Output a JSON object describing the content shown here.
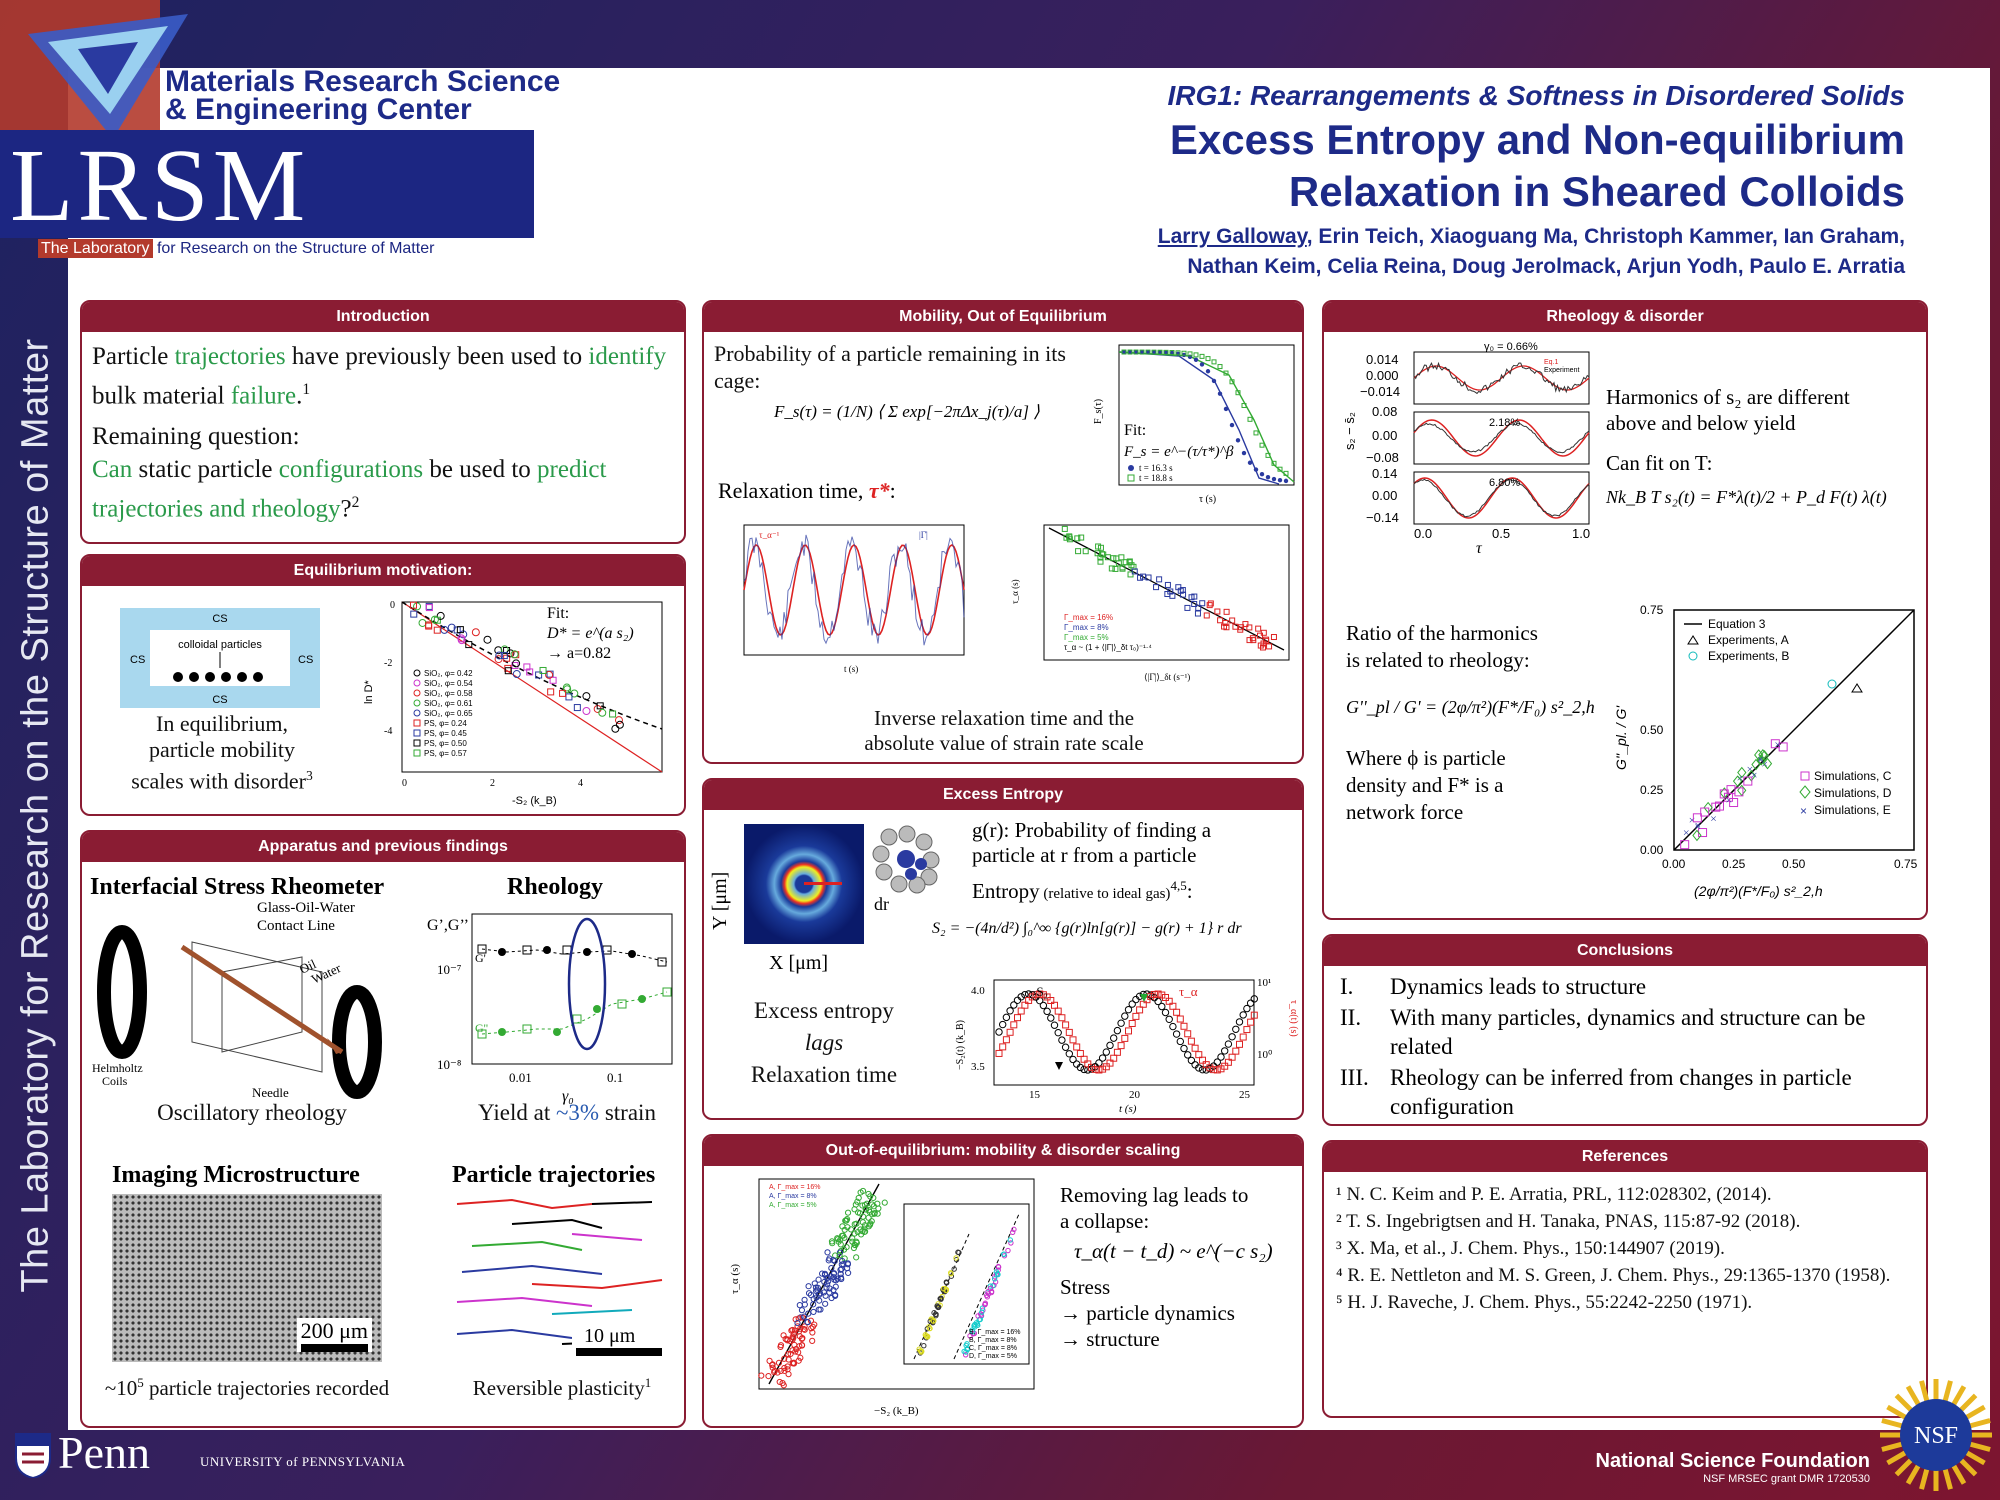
{
  "sidebar": {
    "text": "The Laboratory for Research on the Structure of Matter"
  },
  "logo": {
    "mrsec_line1": "Materials Research Science",
    "mrsec_line2": "& Engineering Center",
    "lrsm": "LRSM",
    "sub_highlight": "The Laboratory",
    "sub_rest": " for Research on the Structure of Matter"
  },
  "header": {
    "irg": "IRG1: Rearrangements & Softness in Disordered Solids",
    "title_line1": "Excess Entropy and Non-equilibrium",
    "title_line2": "Relaxation in Sheared Colloids",
    "lead_author": "Larry Galloway",
    "authors_line1_rest": ", Erin Teich, Xiaoguang Ma, Christoph Kammer, Ian Graham,",
    "authors_line2": "Nathan Keim, Celia Reina, Doug Jerolmack, Arjun Yodh, Paulo E. Arratia"
  },
  "intro": {
    "heading": "Introduction",
    "p1_a": "Particle ",
    "p1_b": "trajectories",
    "p1_c": " have previously been used to ",
    "p1_d": "identify",
    "p1_e": " bulk material ",
    "p1_f": "failure",
    "p1_g": ".",
    "p1_sup": "1",
    "p2": "Remaining question:",
    "p3_a": "Can",
    "p3_b": " static particle ",
    "p3_c": "configurations",
    "p3_d": " be used to ",
    "p3_e": "predict trajectories and rheology",
    "p3_f": "?",
    "p3_sup": "2"
  },
  "equil": {
    "heading": "Equilibrium motivation:",
    "cs": "CS",
    "colloidal": "colloidal particles",
    "caption1": "In equilibrium,",
    "caption2": "particle mobility",
    "caption3": "scales with disorder",
    "caption_sup": "3",
    "fit": "Fit:",
    "fit_eq": "D* = e^(a s₂)",
    "fit_a": "→ a=0.82",
    "ylabel": "ln D*",
    "xlabel": "-S₂ (k_B)",
    "legend": [
      "SiO₂, φ= 0.42",
      "SiO₂, φ= 0.54",
      "SiO₂, φ= 0.58",
      "SiO₂, φ= 0.61",
      "SiO₂, φ= 0.65",
      "PS, φ= 0.24",
      "PS, φ= 0.45",
      "PS, φ= 0.50",
      "PS, φ= 0.57"
    ],
    "xticks": [
      "0",
      "2",
      "4"
    ],
    "yticks": [
      "0",
      "-2",
      "-4"
    ]
  },
  "apparatus": {
    "heading": "Apparatus and previous findings",
    "isr_title": "Interfacial Stress Rheometer",
    "label_gow": "Glass-Oil-Water",
    "label_contact": "Contact Line",
    "label_oil": "Oil",
    "label_water": "Water",
    "label_helm1": "Helmholtz",
    "label_helm2": "Coils",
    "label_needle": "Needle",
    "osc_caption": "Oscillatory rheology",
    "rheo_title": "Rheology",
    "rheo_ylabel": "G’,G’’",
    "rheo_g1": "G'",
    "rheo_g2": "G''",
    "rheo_yticks": [
      "10⁻⁷",
      "10⁻⁸"
    ],
    "rheo_xticks": [
      "0.01",
      "0.1"
    ],
    "rheo_xlabel": "γ₀",
    "yield_a": "Yield at ",
    "yield_b": "~3%",
    "yield_c": " strain",
    "imaging_title": "Imaging Microstructure",
    "scale200": "200 μm",
    "imaging_caption_a": "~10",
    "imaging_caption_sup": "5",
    "imaging_caption_b": " particle trajectories recorded",
    "traj_title": "Particle trajectories",
    "scale10": "10 μm",
    "traj_caption": "Reversible plasticity",
    "traj_sup": "1"
  },
  "mobility": {
    "heading": "Mobility, Out of Equilibrium",
    "p1": "Probability of a particle remaining in its cage:",
    "eq": "F_s(τ) = (1/N) ⟨ Σ exp[−2πΔx_j(τ)/a] ⟩",
    "fit": "Fit:",
    "fit_eq": "F_s = e^−(τ/τ*)^β",
    "legend": [
      "t = 16.3 s",
      "t = 18.8 s"
    ],
    "fs_xlabel": "τ (s)",
    "fs_ylabel": "F_s(τ)",
    "relax": "Relaxation time, ",
    "relax_sym": "τ*",
    "ts_legend1": "τ_α⁻¹",
    "ts_legend2": "|Γ̇|",
    "ts_xlabel": "t (s)",
    "sc_legend": [
      "Γ_max = 16%",
      "Γ_max = 8%",
      "Γ_max = 5%",
      "τ_α ~ (1 + ⟨|Γ̇|⟩_δt τ₀)⁻¹·⁴"
    ],
    "sc_xlabel": "⟨|Γ̇|⟩_δt (s⁻¹)",
    "sc_ylabel": "τ_α (s)",
    "caption1": "Inverse relaxation time and the",
    "caption2": "absolute value of strain rate scale"
  },
  "entropy": {
    "heading": "Excess Entropy",
    "gr_a": "g(r): Probability of finding a",
    "gr_b": "particle at r from a particle",
    "dr": "dr",
    "ylabel": "Y [μm]",
    "xlabel": "X [μm]",
    "entropy_label": "Entropy",
    "entropy_rel": " (relative to ideal gas)",
    "entropy_sup": "4,5",
    "eq": "S₂ = −(4n/d²) ∫₀^∞ {g(r)ln[g(r)] − g(r) + 1} r dr",
    "cap1": "Excess entropy",
    "cap2": "lags",
    "cap3": "Relaxation time",
    "ts_legend1": "−S₂",
    "ts_legend2": "τ_α",
    "ts_xticks": [
      "15",
      "20",
      "25"
    ],
    "ts_yleft": [
      "4.0",
      "3.5"
    ],
    "ts_yright": [
      "10¹",
      "10⁰"
    ],
    "ts_xlabel": "t (s)",
    "ts_ylabel_l": "−S₂(t) (k_B)",
    "ts_ylabel_r": "τ_α(t) (s)"
  },
  "ooe": {
    "heading": "Out-of-equilibrium: mobility & disorder scaling",
    "legendA": [
      "A, Γ_max = 16%",
      "A, Γ_max = 8%",
      "A, Γ_max = 5%"
    ],
    "legendB": [
      "B, Γ_max = 16%",
      "B, Γ_max = 8%",
      "C, Γ_max = 8%",
      "D, Γ_max = 5%"
    ],
    "xlabel": "−S₂ (k_B)",
    "ylabel": "τ_α (s)",
    "t1": "Removing lag leads to",
    "t2": "a collapse:",
    "eq": "τ_α(t − t_d) ~ e^(−c s₂)",
    "t3": "Stress",
    "t4": "→ particle dynamics",
    "t5": "→ structure"
  },
  "rheo": {
    "heading": "Rheology & disorder",
    "panel_titles": [
      "γ₀ = 0.66%",
      "2.18%",
      "6.80%"
    ],
    "legend": [
      "Eq.1",
      "Experiment"
    ],
    "ylabel": "s₂ − s̄₂",
    "xlabel": "τ",
    "yticks1": [
      "0.014",
      "0.000",
      "−0.014"
    ],
    "yticks2": [
      "0.08",
      "0.00",
      "−0.08"
    ],
    "yticks3": [
      "0.14",
      "0.00",
      "−0.14"
    ],
    "xticks": [
      "0.0",
      "0.5",
      "1.0"
    ],
    "h1": "Harmonics of s₂ are different",
    "h2": "above and below yield",
    "fit": "Can fit on T:",
    "eq": "Nk_B T s₂(t) = F*λ(t)/2 + P_d F(t) λ(t)",
    "ratio1": "Ratio of the harmonics",
    "ratio2": "is related to rheology:",
    "eq2": "G''_pl / G' = (2φ/π²)(F*/F₀) s²_2,h",
    "where1": "Where ϕ is particle",
    "where2": "density and F* is a",
    "where3": "network force",
    "sc_legend": [
      "Equation 3",
      "Experiments, A",
      "Experiments, B",
      "Simulations, C",
      "Simulations, D",
      "Simulations, E"
    ],
    "sc_ylabel": "G''_pl. / G'",
    "sc_xlabel": "(2φ/π²)(F*/F₀) s²_2,h",
    "sc_ticks": [
      "0.00",
      "0.25",
      "0.50",
      "0.75"
    ]
  },
  "conclusions": {
    "heading": "Conclusions",
    "items": [
      {
        "num": "I.",
        "text": "Dynamics leads to structure"
      },
      {
        "num": "II.",
        "text": "With many particles, dynamics and structure can be related"
      },
      {
        "num": "III.",
        "text": "Rheology can be inferred from changes in particle configuration"
      }
    ]
  },
  "references": {
    "heading": "References",
    "items": [
      "¹ N. C. Keim and P. E. Arratia, PRL, 112:028302, (2014).",
      "² T. S. Ingebrigtsen and H. Tanaka, PNAS, 115:87-92 (2018).",
      "³ X. Ma, et al., J. Chem. Phys., 150:144907 (2019).",
      "⁴ R. E. Nettleton and M. S. Green, J. Chem. Phys., 29:1365-1370 (1958).",
      "⁵ H. J. Raveche, J. Chem. Phys., 55:2242-2250 (1971)."
    ]
  },
  "footer": {
    "penn": "Penn",
    "penn_sub": "UNIVERSITY of PENNSYLVANIA",
    "nsf": "National Science Foundation",
    "grant": "NSF MRSEC grant DMR 1720530",
    "nsf_logo": "NSF"
  },
  "colors": {
    "maroon": "#8a1c33",
    "navy": "#1d2a88",
    "green": "#2a9a4a",
    "blue": "#2a5bb0"
  }
}
